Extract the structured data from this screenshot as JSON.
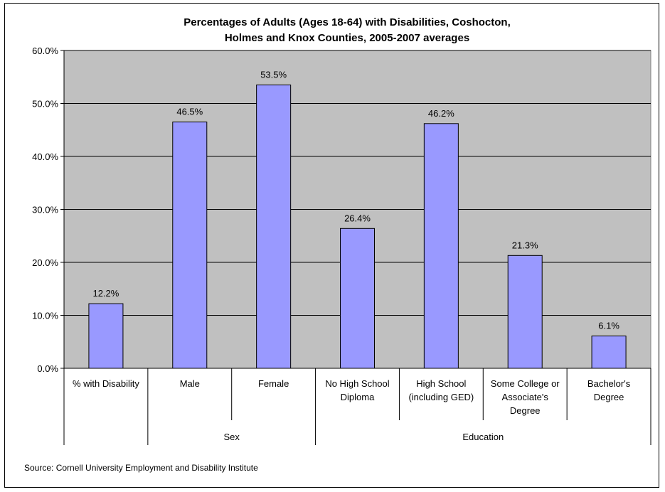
{
  "chart_data": {
    "type": "bar",
    "title_lines": [
      "Percentages of Adults (Ages 18-64) with Disabilities, Coshocton,",
      "Holmes and Knox Counties, 2005-2007 averages"
    ],
    "categories": [
      [
        "% with Disability"
      ],
      [
        "Male"
      ],
      [
        "Female"
      ],
      [
        "No High School",
        "Diploma"
      ],
      [
        "High School",
        "(including GED)"
      ],
      [
        "Some College or",
        "Associate's",
        "Degree"
      ],
      [
        "Bachelor's",
        "Degree"
      ]
    ],
    "values": [
      12.2,
      46.5,
      53.5,
      26.4,
      46.2,
      21.3,
      6.1
    ],
    "data_labels": [
      "12.2%",
      "46.5%",
      "53.5%",
      "26.4%",
      "46.2%",
      "21.3%",
      "6.1%"
    ],
    "groups": [
      {
        "label": "",
        "start": 0,
        "end": 0
      },
      {
        "label": "Sex",
        "start": 1,
        "end": 2
      },
      {
        "label": "Education",
        "start": 3,
        "end": 6
      }
    ],
    "ylim": [
      0,
      60
    ],
    "yticks": [
      "0.0%",
      "10.0%",
      "20.0%",
      "30.0%",
      "40.0%",
      "50.0%",
      "60.0%"
    ],
    "ytick_values": [
      0,
      10,
      20,
      30,
      40,
      50,
      60
    ],
    "xlabel": "",
    "ylabel": "",
    "grid": true,
    "legend": "none",
    "bar_color": "#9999ff",
    "plot_bg": "#c0c0c0",
    "source": "Source: Cornell University Employment and Disability Institute"
  }
}
